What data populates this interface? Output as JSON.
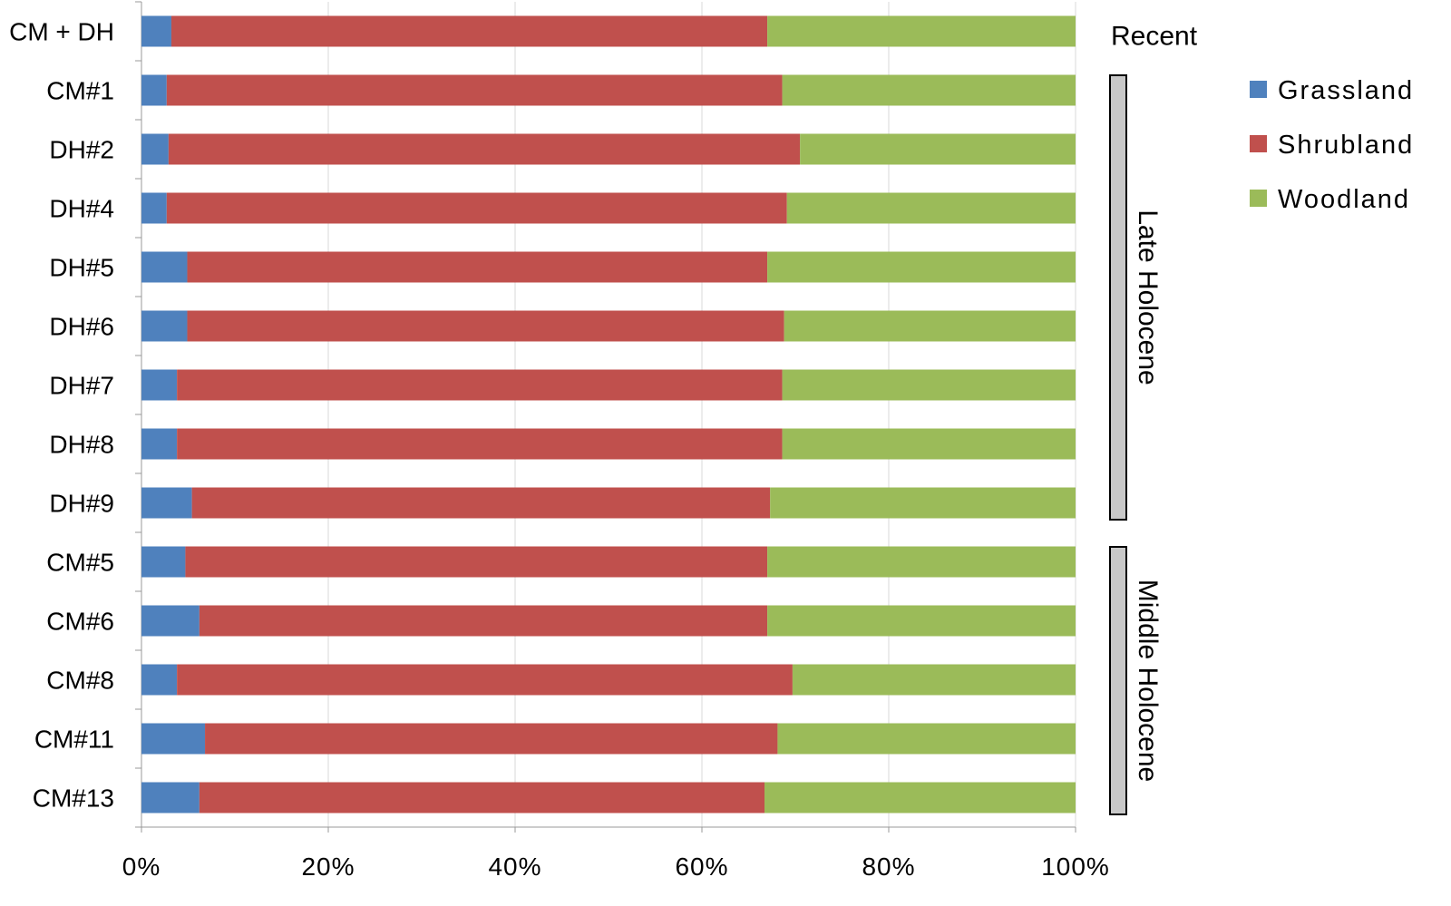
{
  "chart_data": {
    "type": "bar",
    "orientation": "horizontal",
    "stacked": "percent",
    "categories": [
      "CM + DH",
      "CM#1",
      "DH#2",
      "DH#4",
      "DH#5",
      "DH#6",
      "DH#7",
      "DH#8",
      "DH#9",
      "CM#5",
      "CM#6",
      "CM#8",
      "CM#11",
      "CM#13"
    ],
    "series": [
      {
        "name": "Grassland",
        "color": "#4f81bd",
        "values": [
          3.2,
          2.7,
          2.9,
          2.7,
          4.9,
          4.9,
          3.8,
          3.8,
          5.4,
          4.7,
          6.2,
          3.8,
          6.8,
          6.2
        ]
      },
      {
        "name": "Shrubland",
        "color": "#c0504d",
        "values": [
          63.8,
          65.9,
          67.6,
          66.4,
          62.1,
          63.9,
          64.8,
          64.8,
          61.9,
          62.3,
          60.8,
          65.9,
          61.3,
          60.5
        ]
      },
      {
        "name": "Woodland",
        "color": "#9bbb59",
        "values": [
          33.0,
          31.4,
          29.5,
          30.9,
          33.0,
          31.2,
          31.4,
          31.4,
          32.7,
          33.0,
          33.0,
          30.3,
          31.9,
          33.3
        ]
      }
    ],
    "xlim": [
      0,
      100
    ],
    "x_ticks": [
      "0%",
      "20%",
      "40%",
      "60%",
      "80%",
      "100%"
    ],
    "grid": "vertical",
    "legend": "right",
    "groups": [
      {
        "label": "Recent",
        "from": "CM + DH",
        "to": "CM + DH",
        "bracket": false
      },
      {
        "label": "Late Holocene",
        "from": "CM#1",
        "to": "DH#9",
        "bracket": true
      },
      {
        "label": "Middle Holocene",
        "from": "CM#5",
        "to": "CM#13",
        "bracket": true
      }
    ]
  }
}
